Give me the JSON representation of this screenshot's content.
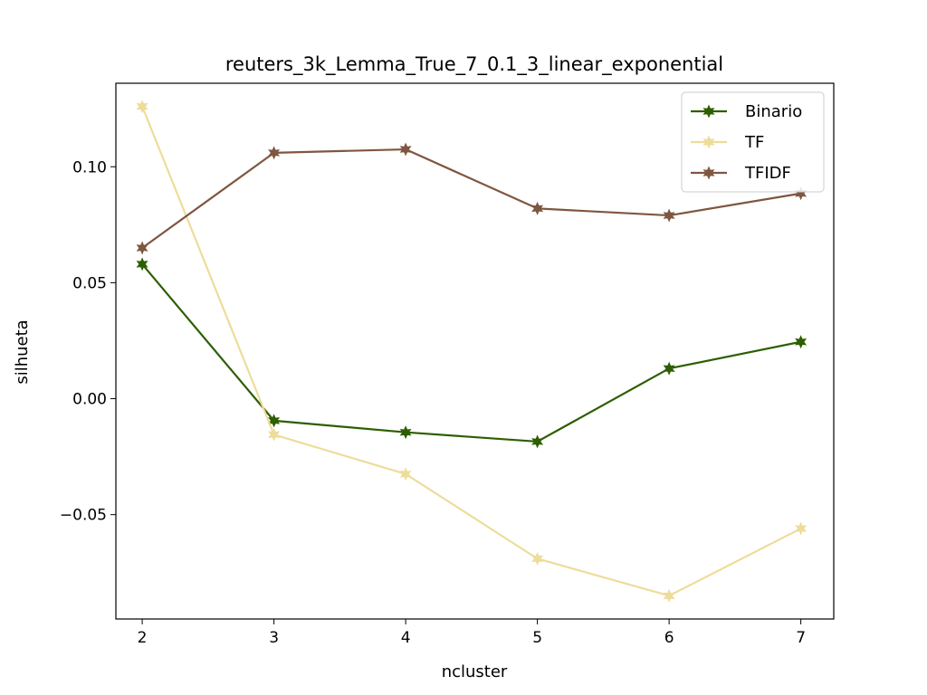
{
  "chart_data": {
    "type": "line",
    "title": "reuters_3k_Lemma_True_7_0.1_3_linear_exponential",
    "xlabel": "ncluster",
    "ylabel": "silhueta",
    "x": [
      2,
      3,
      4,
      5,
      6,
      7
    ],
    "xlim": [
      1.8,
      7.25
    ],
    "ylim": [
      -0.095,
      0.136
    ],
    "xticks": [
      2,
      3,
      4,
      5,
      6,
      7
    ],
    "xtick_labels": [
      "2",
      "3",
      "4",
      "5",
      "6",
      "7"
    ],
    "yticks": [
      -0.05,
      0.0,
      0.05,
      0.1
    ],
    "ytick_labels": [
      "−0.05",
      "0.00",
      "0.05",
      "0.10"
    ],
    "grid": false,
    "legend_position": "top-right",
    "series": [
      {
        "name": "Binario",
        "color": "#2d5e00",
        "values": [
          0.058,
          -0.0095,
          -0.0145,
          -0.0185,
          0.013,
          0.0245
        ]
      },
      {
        "name": "TF",
        "color": "#eedc9a",
        "values": [
          0.126,
          -0.0155,
          -0.0325,
          -0.069,
          -0.085,
          -0.056
        ]
      },
      {
        "name": "TFIDF",
        "color": "#7f5640",
        "values": [
          0.065,
          0.106,
          0.1075,
          0.082,
          0.079,
          0.0885
        ]
      }
    ]
  }
}
